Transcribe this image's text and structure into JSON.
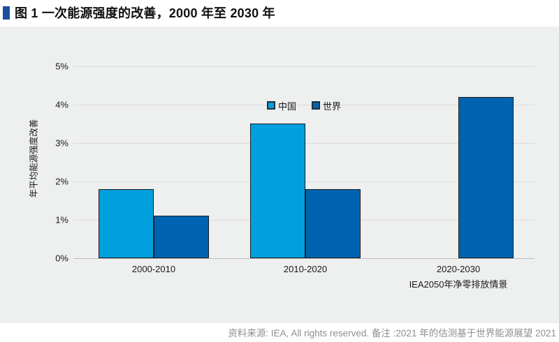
{
  "page": {
    "title": "图 1 一次能源强度的改善，2000 年至 2030 年",
    "source_note": "资料来源: IEA, All rights reserved. 备注 :2021 年的估测基于世界能源展望 2021"
  },
  "chart_data": {
    "type": "bar",
    "title": "图 1 一次能源强度的改善，2000 年至 2030 年",
    "xlabel": "",
    "ylabel": "年平均能源强度改善",
    "categories": [
      "2000-2010",
      "2010-2020",
      "2020-2030"
    ],
    "category_sublabels": [
      "",
      "",
      "IEA2050年净零排放情景"
    ],
    "series": [
      {
        "name": "中国",
        "color": "#009FDE",
        "values": [
          1.8,
          3.5,
          null
        ]
      },
      {
        "name": "世界",
        "color": "#0063B1",
        "values": [
          1.1,
          1.8,
          4.2
        ]
      }
    ],
    "ylim": [
      0,
      5
    ],
    "ytick_step": 1,
    "ytick_suffix": "%",
    "grid": true,
    "legend_position": "top-center",
    "colors": {
      "panel_background": "#EEEFEF",
      "gridline": "#DBDBDB",
      "baseline": "#BDBDBD",
      "bar_border": "#1b1b1b",
      "title_marker": "#1C4E9D",
      "source_text": "#8F8F8F"
    }
  }
}
